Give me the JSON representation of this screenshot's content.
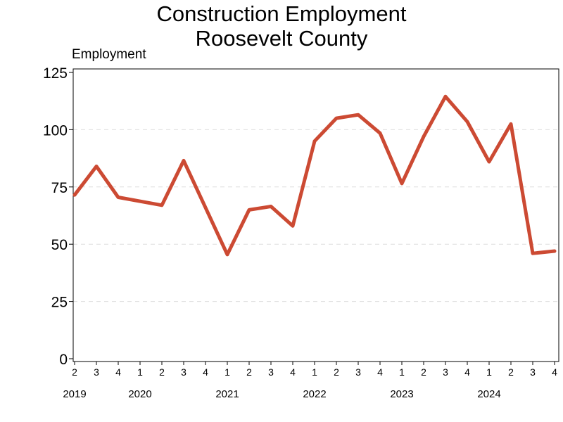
{
  "chart_data": {
    "type": "line",
    "title": [
      "Construction Employment",
      "Roosevelt County"
    ],
    "ylabel": "Employment",
    "xlabel": "",
    "ylim": [
      0,
      125
    ],
    "yticks": [
      0,
      25,
      50,
      75,
      100,
      125
    ],
    "grid": "horizontal-dashed",
    "line_color": "#cc4a33",
    "quarters": [
      "2",
      "3",
      "4",
      "1",
      "2",
      "3",
      "4",
      "1",
      "2",
      "3",
      "4",
      "1",
      "2",
      "3",
      "4",
      "1",
      "2",
      "3",
      "4",
      "1",
      "2",
      "3",
      "4"
    ],
    "years": [
      {
        "label": "2019",
        "anchor_index": 0
      },
      {
        "label": "2020",
        "anchor_index": 3
      },
      {
        "label": "2021",
        "anchor_index": 7
      },
      {
        "label": "2022",
        "anchor_index": 11
      },
      {
        "label": "2023",
        "anchor_index": 15
      },
      {
        "label": "2024",
        "anchor_index": 19
      }
    ],
    "series": [
      {
        "points": [
          {
            "i": 0,
            "y": 71.5
          },
          {
            "i": 1,
            "y": 84
          },
          {
            "i": 2,
            "y": 70.5
          },
          {
            "i": 4,
            "y": 67
          },
          {
            "i": 5,
            "y": 86.5
          },
          {
            "i": 7,
            "y": 45.5
          },
          {
            "i": 8,
            "y": 65
          },
          {
            "i": 9,
            "y": 66.5
          },
          {
            "i": 10,
            "y": 58
          },
          {
            "i": 11,
            "y": 95
          },
          {
            "i": 12,
            "y": 105
          },
          {
            "i": 13,
            "y": 106.5
          },
          {
            "i": 14,
            "y": 98.5
          },
          {
            "i": 15,
            "y": 76.5
          },
          {
            "i": 16,
            "y": 97
          },
          {
            "i": 17,
            "y": 114.5
          },
          {
            "i": 18,
            "y": 103.5
          },
          {
            "i": 19,
            "y": 86
          },
          {
            "i": 20,
            "y": 102.5
          },
          {
            "i": 21,
            "y": 46
          },
          {
            "i": 22,
            "y": 47
          }
        ]
      }
    ]
  }
}
